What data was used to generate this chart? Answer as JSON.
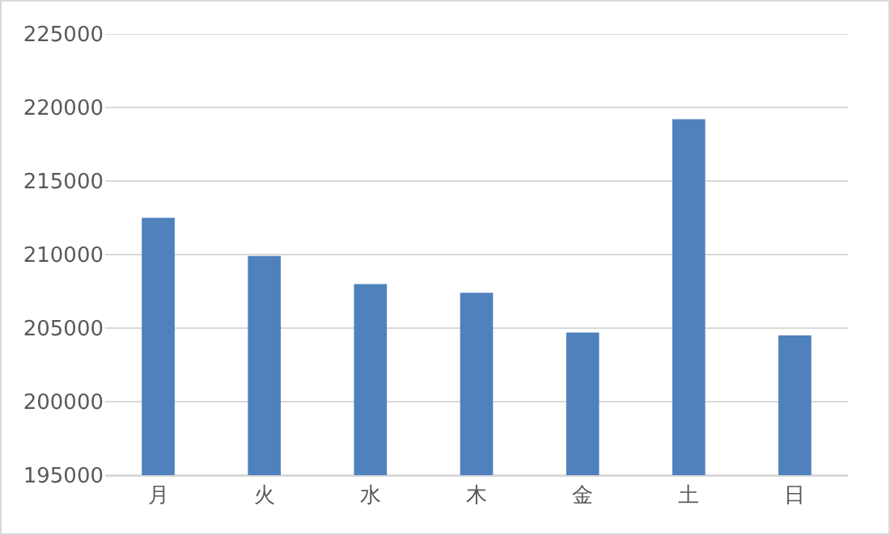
{
  "chart_data": {
    "type": "bar",
    "categories": [
      "月",
      "火",
      "水",
      "木",
      "金",
      "土",
      "日"
    ],
    "values": [
      212500,
      209900,
      208000,
      207400,
      204700,
      219200,
      204500
    ],
    "color": "#4f81bd",
    "ylim": [
      195000,
      225000
    ],
    "yticks": [
      195000,
      200000,
      205000,
      210000,
      215000,
      220000,
      225000
    ],
    "grid": "y"
  }
}
